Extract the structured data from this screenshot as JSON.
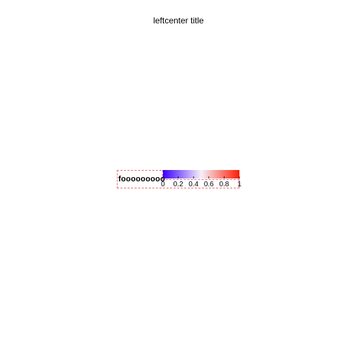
{
  "title": "leftcenter title",
  "legend": {
    "label": "fooooooooo",
    "border_color": "#e8727a"
  },
  "chart_data": {
    "type": "heatmap",
    "title": "leftcenter title",
    "colorbar": {
      "title": "fooooooooo",
      "range": [
        0,
        1
      ],
      "ticks": [
        0,
        0.2,
        0.4,
        0.6,
        0.8,
        1
      ],
      "tick_labels": [
        "0",
        "0.2",
        "0.4",
        "0.6",
        "0.8",
        "1"
      ],
      "colorscale": [
        {
          "value": 0,
          "color": "#3a00ff"
        },
        {
          "value": 0.5,
          "color": "#f5f0fa"
        },
        {
          "value": 1,
          "color": "#ff1a00"
        }
      ]
    }
  }
}
